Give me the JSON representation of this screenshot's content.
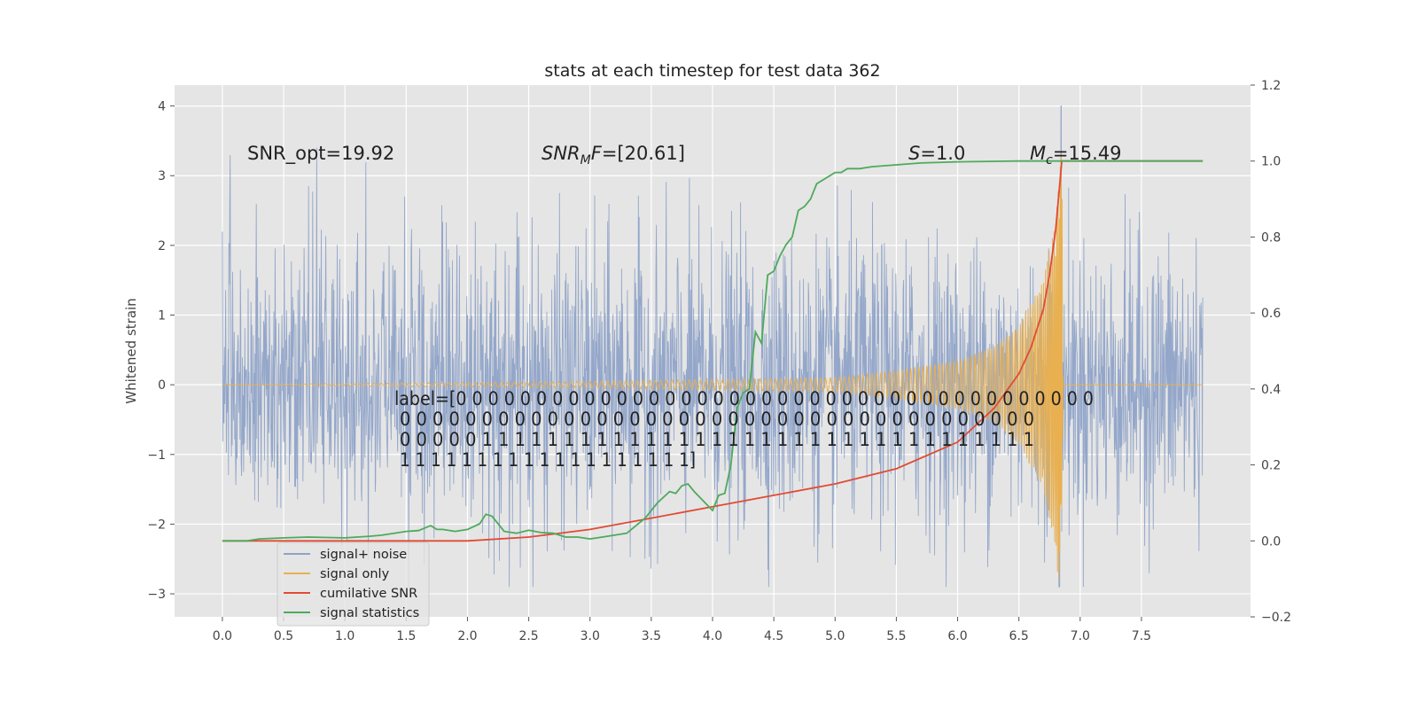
{
  "chart_data": {
    "type": "line",
    "title": "stats at each timestep for test data 362",
    "xlabel": "",
    "ylabel": "Whitened strain",
    "xlim": [
      -0.39,
      8.39
    ],
    "ylim": [
      -3.33,
      4.3
    ],
    "y2lim": [
      -0.2,
      1.2
    ],
    "xticks": [
      "0.0",
      "0.5",
      "1.0",
      "1.5",
      "2.0",
      "2.5",
      "3.0",
      "3.5",
      "4.0",
      "4.5",
      "5.0",
      "5.5",
      "6.0",
      "6.5",
      "7.0",
      "7.5"
    ],
    "yticks": [
      "4",
      "3",
      "2",
      "1",
      "0",
      "−1",
      "−2",
      "−3"
    ],
    "y2ticks": [
      "1.2",
      "1.0",
      "0.8",
      "0.6",
      "0.4",
      "0.2",
      "0.0",
      "−0.2"
    ],
    "annotations": {
      "snr_opt": "SNR_opt=19.92",
      "snr_mf_sym": "SNR",
      "snr_mf_sub": "M",
      "snr_mf_rest": "F",
      "snr_mf_val": "=[20.61]",
      "s_sym": "S",
      "s_val": "=1.0",
      "mc_sym": "M",
      "mc_sub": "c",
      "mc_val": "=15.49"
    },
    "label_lines": [
      "label=[0 0 0 0 0 0 0 0 0 0 0 0 0 0 0 0 0 0 0 0 0 0 0 0 0 0 0 0 0 0 0 0 0 0 0 0 0 0 0 0",
      " 0 0 0 0 0 0 0 0 0 0 0 0 0 0 0 0 0 0 0 0 0 0 0 0 0 0 0 0 0 0 0 0 0 0 0 0 0 0 0",
      " 0 0 0 0 0 1 1 1 1 1 1 1 1 1 1 1 1 1 1 1 1 1 1 1 1 1 1 1 1 1 1 1 1 1 1 1 1 1 1",
      " 1 1 1 1 1 1 1 1 1 1 1 1 1 1 1 1 1 1 1]"
    ],
    "legend": {
      "position": "lower-left",
      "entries": [
        "signal+ noise",
        "signal only",
        "cumilative SNR",
        "signal statistics"
      ]
    },
    "colors": {
      "signal_noise": "#8fa3c8",
      "signal_only": "#e8b050",
      "cumulative_snr": "#e24a33",
      "signal_statistics": "#4eaa5c",
      "axes_bg": "#e5e5e5",
      "grid": "#ffffff"
    },
    "series": [
      {
        "name": "signal+ noise",
        "description": "whitened noisy strain, roughly unit-variance noise with peaks up to ~3.4 and a spike near t=6.85 reaching ~4.0 / -2.9",
        "x_range": [
          0.0,
          8.0
        ],
        "amplitude": 1.0
      },
      {
        "name": "signal only",
        "description": "chirp signal, amplitude growing until merger",
        "x": [
          0.0,
          3.0,
          5.0,
          5.5,
          6.0,
          6.3,
          6.5,
          6.7,
          6.8,
          6.85,
          6.86,
          8.0
        ],
        "envelope": [
          0.0,
          0.05,
          0.1,
          0.2,
          0.35,
          0.55,
          0.85,
          1.5,
          2.4,
          3.4,
          0.0,
          0.0
        ]
      },
      {
        "name": "cumilative SNR",
        "axis": "right",
        "x": [
          0.0,
          1.0,
          2.0,
          2.5,
          3.0,
          3.5,
          4.0,
          4.5,
          5.0,
          5.5,
          6.0,
          6.3,
          6.5,
          6.6,
          6.7,
          6.75,
          6.8,
          6.85,
          6.87,
          8.0
        ],
        "values": [
          0.0,
          0.0,
          0.0,
          0.01,
          0.03,
          0.06,
          0.09,
          0.12,
          0.15,
          0.19,
          0.26,
          0.35,
          0.44,
          0.51,
          0.61,
          0.7,
          0.82,
          1.0,
          1.0,
          1.0
        ]
      },
      {
        "name": "signal statistics",
        "axis": "right",
        "x": [
          0.0,
          0.2,
          0.3,
          0.5,
          0.7,
          1.0,
          1.2,
          1.3,
          1.5,
          1.6,
          1.7,
          1.75,
          1.8,
          1.9,
          2.0,
          2.1,
          2.15,
          2.2,
          2.25,
          2.3,
          2.4,
          2.5,
          2.6,
          2.7,
          2.8,
          2.9,
          3.0,
          3.1,
          3.3,
          3.45,
          3.55,
          3.65,
          3.7,
          3.75,
          3.8,
          3.85,
          4.0,
          4.05,
          4.1,
          4.15,
          4.2,
          4.25,
          4.3,
          4.35,
          4.4,
          4.45,
          4.5,
          4.55,
          4.6,
          4.65,
          4.7,
          4.75,
          4.8,
          4.85,
          4.9,
          4.95,
          5.0,
          5.05,
          5.1,
          5.15,
          5.2,
          5.3,
          5.5,
          5.7,
          6.0,
          6.5,
          7.0,
          8.0
        ],
        "values": [
          0.0,
          0.0,
          0.005,
          0.008,
          0.01,
          0.008,
          0.012,
          0.015,
          0.025,
          0.027,
          0.04,
          0.03,
          0.03,
          0.025,
          0.03,
          0.045,
          0.07,
          0.065,
          0.045,
          0.025,
          0.02,
          0.028,
          0.022,
          0.02,
          0.01,
          0.01,
          0.005,
          0.01,
          0.02,
          0.06,
          0.1,
          0.13,
          0.125,
          0.145,
          0.15,
          0.13,
          0.08,
          0.12,
          0.125,
          0.2,
          0.35,
          0.39,
          0.4,
          0.55,
          0.52,
          0.7,
          0.71,
          0.75,
          0.78,
          0.8,
          0.87,
          0.88,
          0.9,
          0.94,
          0.95,
          0.96,
          0.97,
          0.97,
          0.98,
          0.98,
          0.98,
          0.985,
          0.99,
          0.995,
          0.998,
          1.0,
          1.0,
          1.0
        ]
      }
    ]
  }
}
